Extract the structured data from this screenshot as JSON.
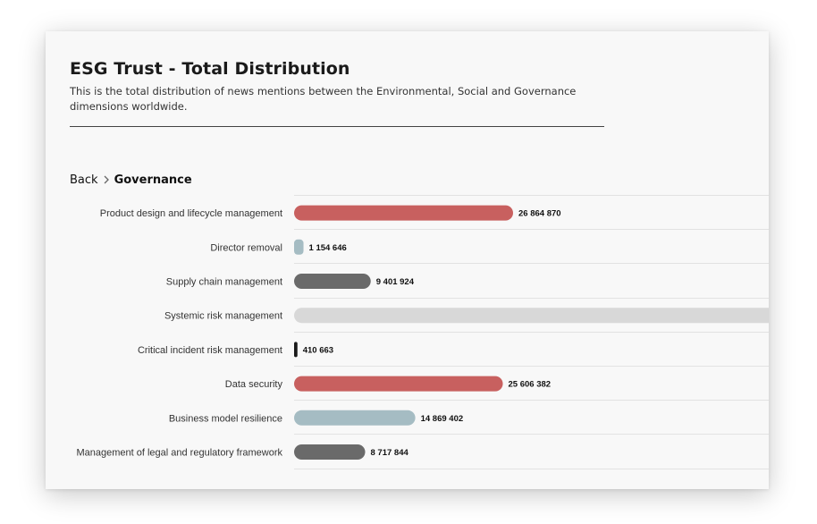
{
  "header": {
    "title": "ESG Trust - Total Distribution",
    "subtitle": "This is the total distribution of news mentions between the Environmental, Social and Governance dimensions worldwide."
  },
  "breadcrumb": {
    "back_label": "Back",
    "current_label": "Governance"
  },
  "colors": {
    "red": "#c8605f",
    "blue": "#a5bcc3",
    "gray": "#6a6a6a",
    "light": "#d8d8d8",
    "black": "#1a1a1a"
  },
  "chart_data": {
    "type": "bar",
    "orientation": "horizontal",
    "categories": [
      "Product design and lifecycle management",
      "Director removal",
      "Supply chain management",
      "Systemic risk management",
      "Critical incident risk management",
      "Data security",
      "Business model resilience",
      "Management of legal and regulatory framework"
    ],
    "values": [
      26864870,
      1154646,
      9401924,
      null,
      410663,
      25606382,
      14869402,
      8717844
    ],
    "value_labels": [
      "26 864 870",
      "1 154 646",
      "9 401 924",
      "",
      "410 663",
      "25 606 382",
      "14 869 402",
      "8 717 844"
    ],
    "bar_colors": [
      "red",
      "blue",
      "gray",
      "light",
      "black",
      "red",
      "blue",
      "gray"
    ],
    "systemic_exceeds_visible_axis": true,
    "xmax": 58000000,
    "grid": true
  }
}
